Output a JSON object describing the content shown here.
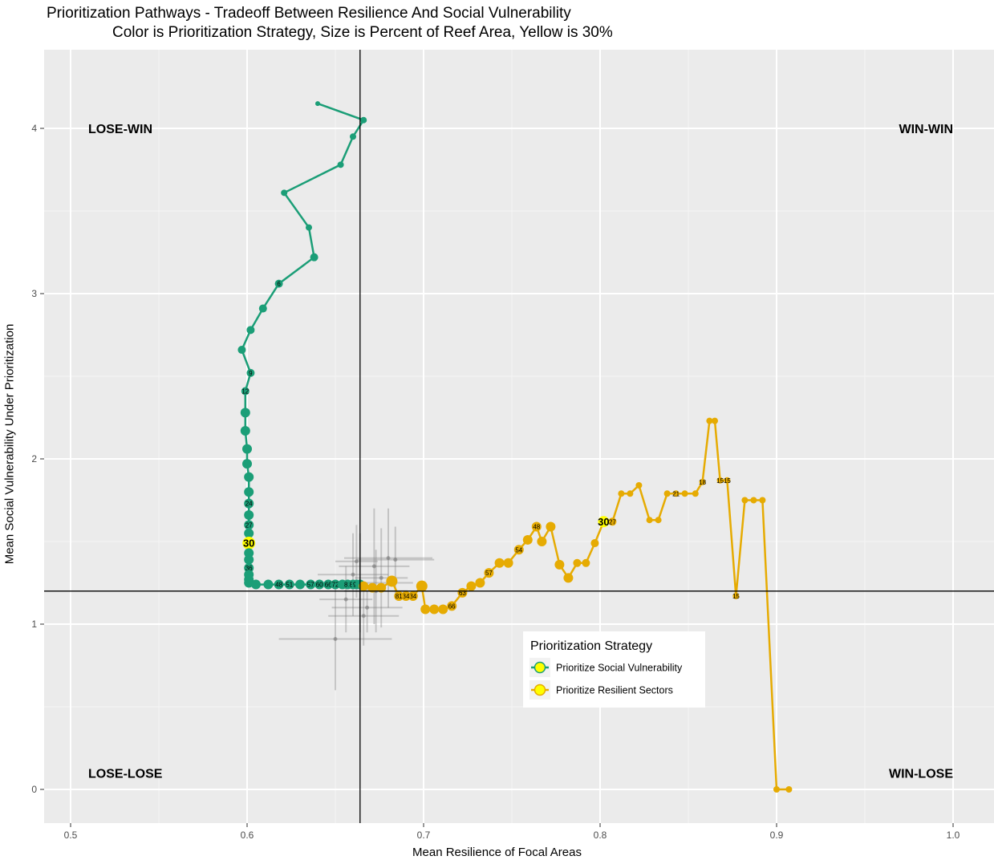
{
  "chart_data": {
    "type": "scatter",
    "title": "Prioritization Pathways - Tradeoff Between Resilience And Social Vulnerability",
    "subtitle": "Color is Prioritization Strategy, Size is Percent of Reef Area, Yellow is 30%",
    "xlabel": "Mean Resilience of Focal Areas",
    "ylabel": "Mean Social Vulnerability Under Prioritization",
    "xlim": [
      0.47,
      1.0235
    ],
    "ylim": [
      -0.2,
      4.45
    ],
    "xticks": [
      0.5,
      0.6,
      0.7,
      0.8,
      0.9,
      1.0
    ],
    "xtick_labels": [
      "0.5",
      "0.6",
      "0.7",
      "0.8",
      "0.9",
      "1.0"
    ],
    "yticks": [
      0,
      1,
      2,
      3,
      4
    ],
    "ytick_labels": [
      "0",
      "1",
      "2",
      "3",
      "4"
    ],
    "grid": true,
    "reference_lines": {
      "x": 0.664,
      "y": 1.2
    },
    "quadrant_labels": [
      {
        "text": "LOSE-WIN",
        "x": 0.51,
        "y": 4.0,
        "anchor": "start"
      },
      {
        "text": "WIN-WIN",
        "x": 1.0,
        "y": 4.0,
        "anchor": "end"
      },
      {
        "text": "LOSE-LOSE",
        "x": 0.51,
        "y": 0.1,
        "anchor": "start"
      },
      {
        "text": "WIN-LOSE",
        "x": 1.0,
        "y": 0.1,
        "anchor": "end"
      }
    ],
    "legend": {
      "title": "Prioritization Strategy",
      "position": "inside-bottom-center",
      "entries": [
        "Prioritize Social Vulnerability",
        "Prioritize Resilient Sectors"
      ]
    },
    "highlight_color": "#ffff00",
    "series": [
      {
        "name": "Prioritize Social Vulnerability",
        "color": "#1b9e77",
        "points": [
          [
            0.64,
            4.15,
            3
          ],
          [
            0.666,
            4.05,
            4
          ],
          [
            0.66,
            3.95,
            4
          ],
          [
            0.653,
            3.78,
            4
          ],
          [
            0.621,
            3.61,
            4
          ],
          [
            0.635,
            3.4,
            4
          ],
          [
            0.638,
            3.22,
            5
          ],
          [
            0.618,
            3.06,
            5,
            "6"
          ],
          [
            0.609,
            2.91,
            5
          ],
          [
            0.602,
            2.78,
            5
          ],
          [
            0.597,
            2.66,
            5
          ],
          [
            0.602,
            2.52,
            5,
            "9"
          ],
          [
            0.599,
            2.41,
            5,
            "12"
          ],
          [
            0.599,
            2.28,
            6
          ],
          [
            0.599,
            2.17,
            6
          ],
          [
            0.6,
            2.06,
            6
          ],
          [
            0.6,
            1.97,
            6
          ],
          [
            0.601,
            1.89,
            6
          ],
          [
            0.601,
            1.8,
            6
          ],
          [
            0.601,
            1.73,
            6,
            "24"
          ],
          [
            0.601,
            1.66,
            6
          ],
          [
            0.601,
            1.6,
            6,
            "27"
          ],
          [
            0.601,
            1.55,
            6
          ],
          [
            0.601,
            1.49,
            8,
            "30"
          ],
          [
            0.601,
            1.43,
            6
          ],
          [
            0.601,
            1.39,
            6
          ],
          [
            0.601,
            1.34,
            6,
            "36"
          ],
          [
            0.601,
            1.3,
            6
          ],
          [
            0.601,
            1.27,
            6
          ],
          [
            0.601,
            1.25,
            6
          ],
          [
            0.605,
            1.24,
            6
          ],
          [
            0.612,
            1.24,
            6
          ],
          [
            0.618,
            1.24,
            6,
            "48"
          ],
          [
            0.624,
            1.24,
            6,
            "51"
          ],
          [
            0.63,
            1.24,
            6
          ],
          [
            0.636,
            1.24,
            6,
            "57"
          ],
          [
            0.641,
            1.24,
            6,
            "60"
          ],
          [
            0.646,
            1.24,
            6,
            "66"
          ],
          [
            0.65,
            1.24,
            6,
            "72"
          ],
          [
            0.654,
            1.24,
            6
          ],
          [
            0.657,
            1.24,
            6,
            "81"
          ],
          [
            0.66,
            1.24,
            6,
            "87"
          ],
          [
            0.662,
            1.24,
            6,
            "90"
          ],
          [
            0.664,
            1.24,
            6
          ]
        ]
      },
      {
        "name": "Prioritize Resilient Sectors",
        "color": "#e6ab02",
        "points": [
          [
            0.907,
            0.0,
            4
          ],
          [
            0.9,
            0.0,
            4
          ],
          [
            0.892,
            1.75,
            4
          ],
          [
            0.887,
            1.75,
            4
          ],
          [
            0.882,
            1.75,
            4
          ],
          [
            0.877,
            1.17,
            4,
            "15"
          ],
          [
            0.872,
            1.87,
            4,
            "15"
          ],
          [
            0.868,
            1.87,
            4,
            "15"
          ],
          [
            0.865,
            2.23,
            4
          ],
          [
            0.862,
            2.23,
            4
          ],
          [
            0.858,
            1.86,
            4,
            "18"
          ],
          [
            0.854,
            1.79,
            4
          ],
          [
            0.848,
            1.79,
            4
          ],
          [
            0.843,
            1.79,
            4,
            "21"
          ],
          [
            0.838,
            1.79,
            4
          ],
          [
            0.833,
            1.63,
            4
          ],
          [
            0.828,
            1.63,
            4
          ],
          [
            0.822,
            1.84,
            4
          ],
          [
            0.817,
            1.79,
            4
          ],
          [
            0.812,
            1.79,
            4
          ],
          [
            0.807,
            1.62,
            5,
            "27"
          ],
          [
            0.802,
            1.62,
            7,
            "30"
          ],
          [
            0.797,
            1.49,
            5
          ],
          [
            0.792,
            1.37,
            5
          ],
          [
            0.787,
            1.37,
            5
          ],
          [
            0.782,
            1.28,
            6
          ],
          [
            0.777,
            1.36,
            6
          ],
          [
            0.772,
            1.59,
            6
          ],
          [
            0.767,
            1.5,
            6
          ],
          [
            0.764,
            1.59,
            6,
            "48"
          ],
          [
            0.759,
            1.51,
            6
          ],
          [
            0.754,
            1.45,
            6,
            "54"
          ],
          [
            0.748,
            1.37,
            6
          ],
          [
            0.743,
            1.37,
            6
          ],
          [
            0.737,
            1.31,
            6,
            "57"
          ],
          [
            0.732,
            1.25,
            6
          ],
          [
            0.727,
            1.23,
            6
          ],
          [
            0.722,
            1.19,
            6,
            "63"
          ],
          [
            0.716,
            1.11,
            6,
            "66"
          ],
          [
            0.711,
            1.09,
            6
          ],
          [
            0.706,
            1.09,
            6
          ],
          [
            0.701,
            1.09,
            6
          ],
          [
            0.699,
            1.23,
            7
          ],
          [
            0.694,
            1.17,
            6,
            "84"
          ],
          [
            0.69,
            1.17,
            6,
            "84"
          ],
          [
            0.686,
            1.17,
            6,
            "81"
          ],
          [
            0.682,
            1.26,
            7
          ],
          [
            0.676,
            1.22,
            6
          ],
          [
            0.671,
            1.22,
            6
          ],
          [
            0.666,
            1.23,
            6
          ]
        ]
      }
    ],
    "uncertainty_points": [
      {
        "x": 0.664,
        "y": 1.25,
        "xerr": 0.03,
        "yerr": 0.3
      },
      {
        "x": 0.672,
        "y": 1.35,
        "xerr": 0.02,
        "yerr": 0.35
      },
      {
        "x": 0.68,
        "y": 1.4,
        "xerr": 0.025,
        "yerr": 0.3
      },
      {
        "x": 0.66,
        "y": 1.3,
        "xerr": 0.02,
        "yerr": 0.25
      },
      {
        "x": 0.656,
        "y": 1.15,
        "xerr": 0.015,
        "yerr": 0.2
      },
      {
        "x": 0.668,
        "y": 1.1,
        "xerr": 0.02,
        "yerr": 0.15
      },
      {
        "x": 0.673,
        "y": 1.2,
        "xerr": 0.018,
        "yerr": 0.25
      },
      {
        "x": 0.65,
        "y": 0.91,
        "xerr": 0.032,
        "yerr": 0.31
      },
      {
        "x": 0.684,
        "y": 1.39,
        "xerr": 0.022,
        "yerr": 0.2
      },
      {
        "x": 0.662,
        "y": 1.38,
        "xerr": 0.012,
        "yerr": 0.22
      },
      {
        "x": 0.676,
        "y": 1.28,
        "xerr": 0.015,
        "yerr": 0.3
      },
      {
        "x": 0.666,
        "y": 1.05,
        "xerr": 0.02,
        "yerr": 0.18
      }
    ]
  }
}
